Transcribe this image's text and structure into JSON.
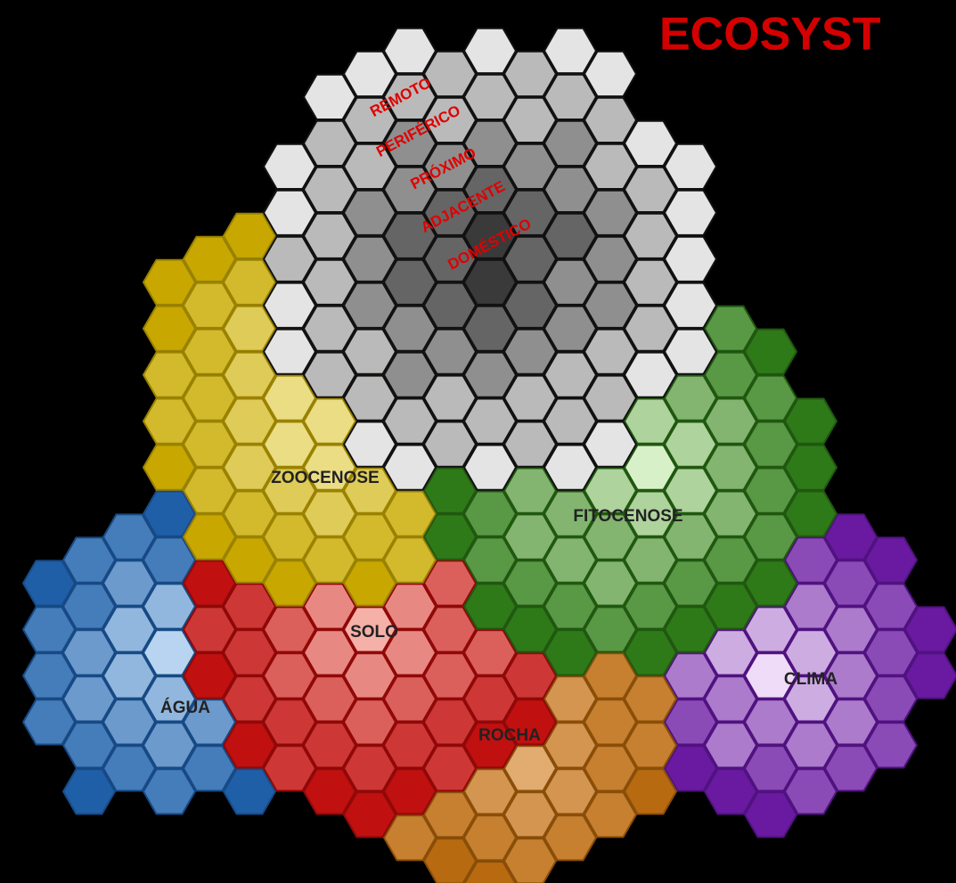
{
  "header": {
    "title": "ECOSYST"
  },
  "rings": [
    "REMOTO",
    "PERIFÉRICO",
    "PRÓXIMO",
    "ADJACENTE",
    "DOMÉSTICO"
  ],
  "nodes": [
    {
      "label": "ZOOCENOSE"
    },
    {
      "label": "FITOCENOSE"
    },
    {
      "label": "SOLO"
    },
    {
      "label": "ÁGUA"
    },
    {
      "label": "ROCHA"
    },
    {
      "label": "CLIMA"
    }
  ]
}
